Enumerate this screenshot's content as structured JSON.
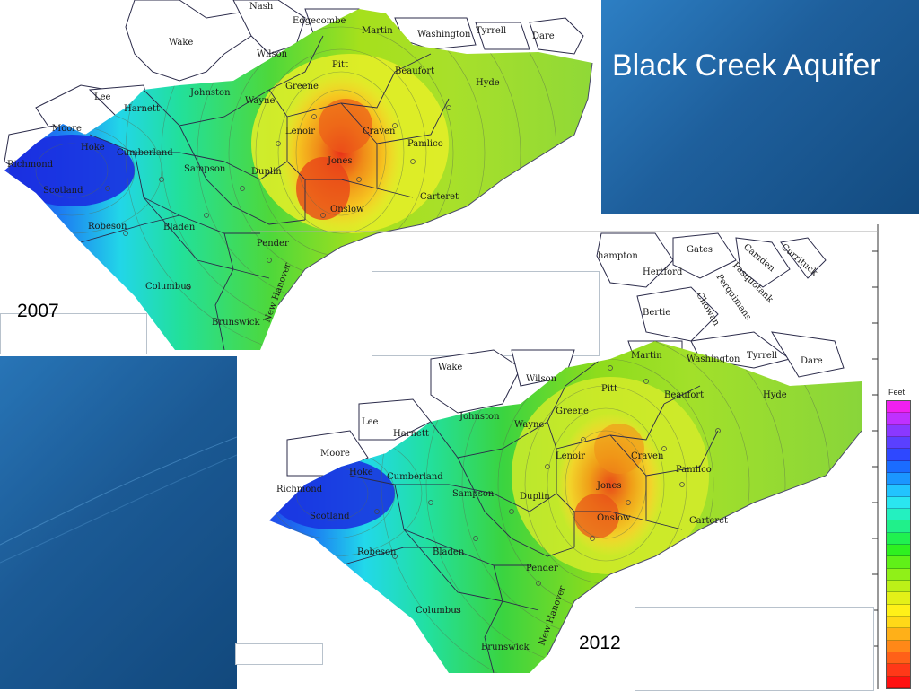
{
  "slide": {
    "title": "Black Creek Aquifer",
    "colors": {
      "panel_blue": "#1e5f9c",
      "ocean_white": "#ffffff",
      "county_line": "#2b2b4a"
    }
  },
  "map_2007": {
    "year_label": "2007",
    "counties": [
      "Nash",
      "Edgecombe",
      "Martin",
      "Washington",
      "Tyrrell",
      "Dare",
      "Wake",
      "Wilson",
      "Pitt",
      "Beaufort",
      "Hyde",
      "Johnston",
      "Greene",
      "Wayne",
      "Lee",
      "Harnett",
      "Lenoir",
      "Craven",
      "Pamlico",
      "Moore",
      "Hoke",
      "Cumberland",
      "Jones",
      "Sampson",
      "Duplin",
      "Richmond",
      "Scotland",
      "Carteret",
      "Onslow",
      "Robeson",
      "Bladen",
      "Pender",
      "Columbus",
      "Brunswick",
      "New Hanover"
    ]
  },
  "map_2012": {
    "year_label": "2012",
    "counties": [
      "hampton",
      "Gates",
      "Camden",
      "Currituck",
      "Pasquotank",
      "Hertford",
      "Perquimans",
      "Chowan",
      "Bertie",
      "Martin",
      "Washington",
      "Tyrrell",
      "Dare",
      "Wake",
      "Wilson",
      "Pitt",
      "Beaufort",
      "Hyde",
      "Johnston",
      "Greene",
      "Wayne",
      "Lee",
      "Harnett",
      "Lenoir",
      "Craven",
      "Pamlico",
      "Moore",
      "Hoke",
      "Cumberland",
      "Jones",
      "Sampson",
      "Duplin",
      "Richmond",
      "Scotland",
      "Onslow",
      "Carteret",
      "Robeson",
      "Bladen",
      "Pender",
      "Columbus",
      "New Hanover",
      "Brunswick"
    ]
  },
  "legend": {
    "unit_label": "Feet",
    "colors": [
      "#f020f0",
      "#c030ff",
      "#8a38ff",
      "#5a40ff",
      "#2e48ff",
      "#1a6cff",
      "#1b96ff",
      "#22c4ff",
      "#2ae6f0",
      "#24f0c0",
      "#20f08a",
      "#20f050",
      "#2ef020",
      "#60f018",
      "#90f018",
      "#bcf018",
      "#e4f018",
      "#fff018",
      "#ffd818",
      "#ffb018",
      "#ff8818",
      "#ff6018",
      "#ff3818",
      "#ff1010"
    ]
  }
}
